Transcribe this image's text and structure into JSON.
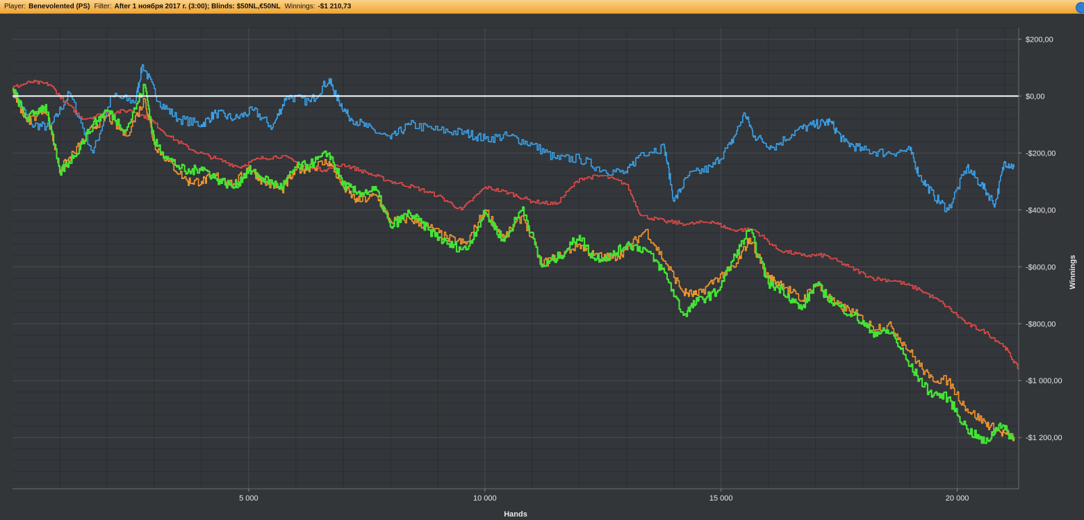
{
  "header": {
    "player_label": "Player:",
    "player_value": "Benevolented (PS)",
    "filter_label": "Filter:",
    "filter_value": "After 1 ноября 2017 г. (3:00); Blinds: $50NL,€50NL",
    "winnings_label": "Winnings:",
    "winnings_value": "-$1 210,73"
  },
  "chart_data": {
    "type": "line",
    "xlabel": "Hands",
    "ylabel": "Winnings",
    "xlim": [
      0,
      21300
    ],
    "ylim": [
      -1380,
      240
    ],
    "x_ticks": [
      5000,
      10000,
      15000,
      20000
    ],
    "x_tick_labels": [
      "5 000",
      "10 000",
      "15 000",
      "20 000"
    ],
    "y_ticks": [
      200,
      0,
      -200,
      -400,
      -600,
      -800,
      -1000,
      -1200
    ],
    "y_tick_labels": [
      "$200,00",
      "$0,00",
      "-$200,00",
      "-$400,00",
      "-$600,00",
      "-$800,00",
      "-$1 000,00",
      "-$1 200,00"
    ],
    "grid": true,
    "zero_line": 0,
    "series": [
      {
        "color": "#3aa0e6",
        "x": [
          0,
          400,
          800,
          1200,
          1700,
          2100,
          2600,
          2750,
          3100,
          3500,
          4000,
          4300,
          4700,
          5100,
          5500,
          5800,
          6300,
          6700,
          6850,
          7100,
          7500,
          8000,
          8400,
          9000,
          9600,
          10000,
          10500,
          11000,
          11500,
          12000,
          12500,
          13000,
          13300,
          13800,
          14000,
          14300,
          14800,
          15200,
          15500,
          15700,
          16100,
          16600,
          17000,
          17300,
          17600,
          18000,
          18500,
          19000,
          19200,
          19500,
          19800,
          20200,
          20500,
          20800,
          21000,
          21200
        ],
        "values": [
          20,
          -100,
          -110,
          10,
          -200,
          0,
          -20,
          110,
          -20,
          -80,
          -100,
          -60,
          -80,
          -50,
          -110,
          0,
          -20,
          60,
          0,
          -70,
          -110,
          -150,
          -100,
          -120,
          -130,
          -150,
          -140,
          -170,
          -220,
          -220,
          -260,
          -270,
          -200,
          -180,
          -370,
          -280,
          -250,
          -170,
          -60,
          -140,
          -180,
          -120,
          -100,
          -90,
          -160,
          -190,
          -200,
          -190,
          -280,
          -350,
          -400,
          -250,
          -310,
          -380,
          -230,
          -250
        ]
      },
      {
        "color": "#e04a48",
        "x": [
          0,
          400,
          800,
          1100,
          1500,
          2000,
          2500,
          2900,
          3300,
          3800,
          4300,
          4800,
          5200,
          5700,
          6200,
          6600,
          7000,
          7500,
          8000,
          8500,
          9000,
          9500,
          10000,
          10500,
          11000,
          11500,
          12000,
          12500,
          13000,
          13300,
          13800,
          14300,
          14800,
          15200,
          15700,
          16200,
          16700,
          17200,
          17700,
          18200,
          18700,
          19200,
          19700,
          20200,
          20600,
          21000,
          21300
        ],
        "values": [
          30,
          50,
          40,
          -20,
          -80,
          -60,
          -50,
          -80,
          -140,
          -190,
          -220,
          -250,
          -220,
          -210,
          -250,
          -260,
          -240,
          -270,
          -300,
          -320,
          -350,
          -400,
          -320,
          -340,
          -370,
          -380,
          -290,
          -280,
          -310,
          -420,
          -440,
          -450,
          -440,
          -470,
          -470,
          -540,
          -560,
          -560,
          -600,
          -640,
          -650,
          -680,
          -730,
          -800,
          -830,
          -880,
          -960
        ]
      },
      {
        "color": "#f0962e",
        "x": [
          0,
          300,
          700,
          1000,
          1300,
          1700,
          2000,
          2400,
          2800,
          3000,
          3300,
          3700,
          4000,
          4300,
          4700,
          5000,
          5300,
          5700,
          6000,
          6300,
          6700,
          7000,
          7300,
          7700,
          8000,
          8400,
          8800,
          9200,
          9600,
          10000,
          10400,
          10800,
          11200,
          11600,
          12000,
          12300,
          12700,
          13000,
          13400,
          13800,
          14200,
          14500,
          14900,
          15300,
          15600,
          16000,
          16300,
          16700,
          17000,
          17400,
          17800,
          18200,
          18600,
          19000,
          19400,
          19800,
          20200,
          20600,
          20900,
          21200
        ],
        "values": [
          20,
          -90,
          -40,
          -260,
          -200,
          -110,
          -70,
          -140,
          -10,
          -170,
          -230,
          -300,
          -300,
          -280,
          -310,
          -250,
          -300,
          -330,
          -260,
          -250,
          -230,
          -320,
          -370,
          -350,
          -440,
          -430,
          -460,
          -500,
          -520,
          -400,
          -500,
          -420,
          -590,
          -560,
          -520,
          -560,
          -570,
          -540,
          -470,
          -580,
          -690,
          -700,
          -640,
          -600,
          -500,
          -640,
          -660,
          -720,
          -660,
          -730,
          -760,
          -810,
          -810,
          -900,
          -990,
          -1000,
          -1100,
          -1150,
          -1180,
          -1200
        ]
      },
      {
        "color": "#44e336",
        "x": [
          0,
          300,
          700,
          1000,
          1300,
          1700,
          2000,
          2400,
          2800,
          3000,
          3300,
          3700,
          4000,
          4300,
          4700,
          5000,
          5300,
          5700,
          6000,
          6300,
          6700,
          7000,
          7300,
          7700,
          8000,
          8400,
          8800,
          9200,
          9600,
          10000,
          10400,
          10800,
          11200,
          11600,
          12000,
          12300,
          12700,
          13000,
          13400,
          13800,
          14200,
          14500,
          14900,
          15300,
          15600,
          16000,
          16300,
          16700,
          17000,
          17400,
          17800,
          18200,
          18600,
          19000,
          19400,
          19800,
          20200,
          20600,
          20900,
          21200
        ],
        "values": [
          25,
          -80,
          -30,
          -270,
          -210,
          -100,
          -50,
          -120,
          40,
          -160,
          -220,
          -270,
          -250,
          -290,
          -320,
          -260,
          -290,
          -320,
          -250,
          -240,
          -200,
          -310,
          -340,
          -330,
          -460,
          -410,
          -470,
          -520,
          -540,
          -410,
          -510,
          -390,
          -600,
          -560,
          -490,
          -570,
          -560,
          -520,
          -540,
          -620,
          -770,
          -720,
          -690,
          -560,
          -470,
          -660,
          -680,
          -750,
          -660,
          -730,
          -770,
          -830,
          -830,
          -950,
          -1040,
          -1060,
          -1170,
          -1220,
          -1150,
          -1210
        ]
      }
    ]
  }
}
